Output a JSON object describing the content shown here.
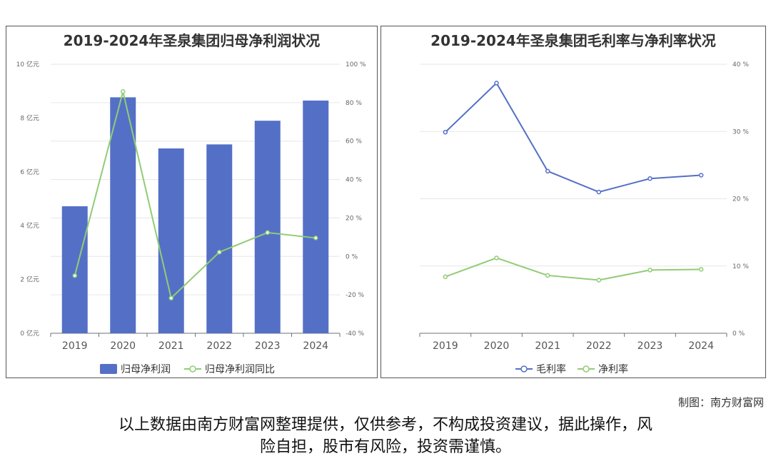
{
  "charts": [
    {
      "title": "2019-2024年圣泉集团归母净利润状况",
      "legend": [
        "归母净利润",
        "归母净利润同比"
      ]
    },
    {
      "title": "2019-2024年圣泉集团毛利率与净利率状况",
      "legend": [
        "毛利率",
        "净利率"
      ]
    }
  ],
  "chart_data": [
    {
      "type": "bar",
      "title": "2019-2024年圣泉集团归母净利润状况",
      "categories": [
        "2019",
        "2020",
        "2021",
        "2022",
        "2023",
        "2024"
      ],
      "series": [
        {
          "name": "归母净利润",
          "type": "bar",
          "axis": "left",
          "values": [
            4.72,
            8.77,
            6.87,
            7.02,
            7.9,
            8.65
          ]
        },
        {
          "name": "归母净利润同比",
          "type": "line",
          "axis": "right",
          "values": [
            -10.0,
            85.8,
            -21.7,
            2.2,
            12.4,
            9.6
          ]
        }
      ],
      "y_left": {
        "min": 0,
        "max": 10,
        "ticks": [
          "0 亿元",
          "2 亿元",
          "4 亿元",
          "6 亿元",
          "8 亿元",
          "10 亿元"
        ]
      },
      "y_right": {
        "min": -40,
        "max": 100,
        "ticks": [
          "-40 %",
          "-20 %",
          "0 %",
          "20 %",
          "40 %",
          "60 %",
          "80 %",
          "100 %"
        ]
      },
      "grid": true,
      "legend_position": "bottom"
    },
    {
      "type": "line",
      "title": "2019-2024年圣泉集团毛利率与净利率状况",
      "categories": [
        "2019",
        "2020",
        "2021",
        "2022",
        "2023",
        "2024"
      ],
      "series": [
        {
          "name": "毛利率",
          "values": [
            29.9,
            37.2,
            24.1,
            21.0,
            23.0,
            23.5
          ]
        },
        {
          "name": "净利率",
          "values": [
            8.4,
            11.2,
            8.6,
            7.9,
            9.4,
            9.5
          ]
        }
      ],
      "y_right": {
        "min": 0,
        "max": 40,
        "ticks": [
          "0 %",
          "10 %",
          "20 %",
          "30 %",
          "40 %"
        ]
      },
      "grid": true,
      "legend_position": "bottom"
    }
  ],
  "colors": {
    "bar": "#5470c6",
    "green": "#91cc75",
    "blue_line": "#5470c6"
  },
  "footer": {
    "credit": "制图：南方财富网",
    "disclaimer_line1": "以上数据由南方财富网整理提供，仅供参考，不构成投资建议，据此操作，风",
    "disclaimer_line2": "险自担，股市有风险，投资需谨慎。"
  }
}
